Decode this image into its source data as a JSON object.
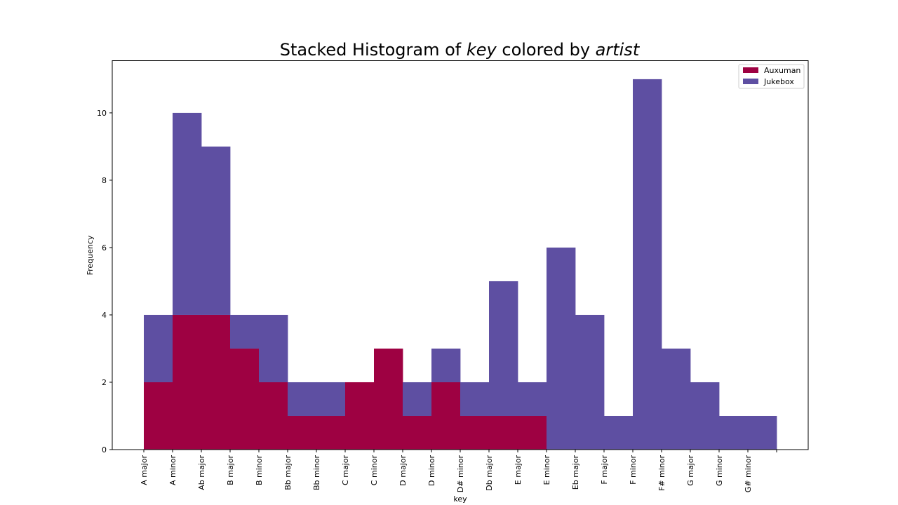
{
  "chart_data": {
    "type": "bar",
    "stacked": true,
    "title_prefix": "Stacked Histogram of ",
    "title_var1": "key",
    "title_mid": " colored by ",
    "title_var2": "artist",
    "xlabel": "key",
    "ylabel": "Frequency",
    "ylim": [
      0,
      11.55
    ],
    "yticks": [
      0,
      2,
      4,
      6,
      8,
      10
    ],
    "legend_position": "top-right",
    "categories": [
      "A major",
      "A minor",
      "Ab major",
      "B major",
      "B minor",
      "Bb major",
      "Bb minor",
      "C major",
      "C minor",
      "D major",
      "D minor",
      "D# minor",
      "Db major",
      "E major",
      "E minor",
      "Eb major",
      "F major",
      "F minor",
      "F# minor",
      "G major",
      "G minor",
      "G# minor"
    ],
    "series": [
      {
        "name": "Auxuman",
        "color": "#9e0142",
        "values": [
          2,
          4,
          4,
          3,
          2,
          1,
          1,
          2,
          3,
          1,
          2,
          1,
          1,
          1,
          0,
          0,
          0,
          0,
          0,
          0,
          0,
          0
        ]
      },
      {
        "name": "Jukebox",
        "color": "#5e4fa2",
        "values": [
          2,
          6,
          5,
          1,
          2,
          1,
          1,
          0,
          0,
          1,
          1,
          1,
          4,
          1,
          6,
          4,
          1,
          11,
          3,
          2,
          1,
          1
        ]
      }
    ]
  }
}
